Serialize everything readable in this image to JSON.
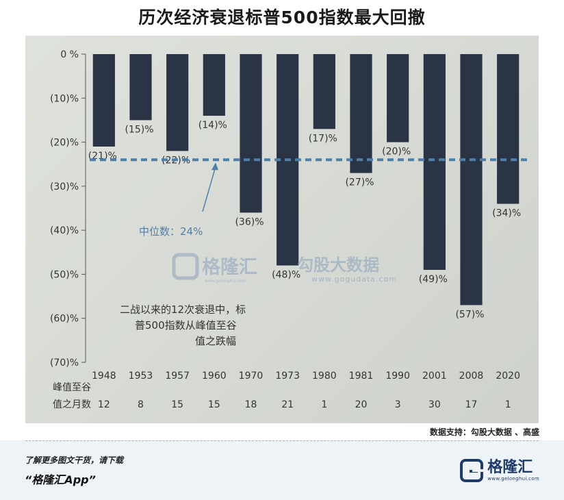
{
  "page": {
    "title": "历次经济衰退标普500指数最大回撤",
    "source": "数据支持：勾股大数据 、高盛",
    "footer_line1": "了解更多图文干货，请下载",
    "footer_line2": "“格隆汇App”",
    "brand_name": "格隆汇",
    "brand_url": "www.gelonghui.com"
  },
  "watermark": {
    "brand": "格隆汇",
    "brand_url": "www.gelonghui.com",
    "partner": "勾股大数据",
    "partner_url": "www.gogudata.com"
  },
  "chart_data": {
    "type": "bar",
    "categories": [
      "1948",
      "1953",
      "1957",
      "1960",
      "1970",
      "1973",
      "1980",
      "1981",
      "1990",
      "2001",
      "2008",
      "2020"
    ],
    "values": [
      -21,
      -15,
      -22,
      -14,
      -36,
      -48,
      -17,
      -27,
      -20,
      -49,
      -57,
      -34
    ],
    "value_labels": [
      "(21)%",
      "(15)%",
      "(22)%",
      "(14)%",
      "(36)%",
      "(48)%",
      "(17)%",
      "(27)%",
      "(20)%",
      "(49)%",
      "(57)%",
      "(34)%"
    ],
    "months_label": "峰值至谷值之月数",
    "months": [
      "12",
      "8",
      "15",
      "15",
      "18",
      "21",
      "1",
      "20",
      "3",
      "30",
      "17",
      "1"
    ],
    "ylim": [
      -70,
      0
    ],
    "yticks": [
      0,
      -10,
      -20,
      -30,
      -40,
      -50,
      -60,
      -70
    ],
    "ytick_labels": [
      "0 %",
      "(10)%",
      "(20)%",
      "(30)%",
      "(40)%",
      "(50)%",
      "(60)%",
      "(70)%"
    ],
    "median": -24,
    "median_label": "中位数：24%",
    "annotation": "二战以来的12次衰退中，标普500指数从峰值至谷值之跌幅",
    "bar_color": "#2b3445",
    "median_color": "#4f7fa8",
    "grid": false
  }
}
